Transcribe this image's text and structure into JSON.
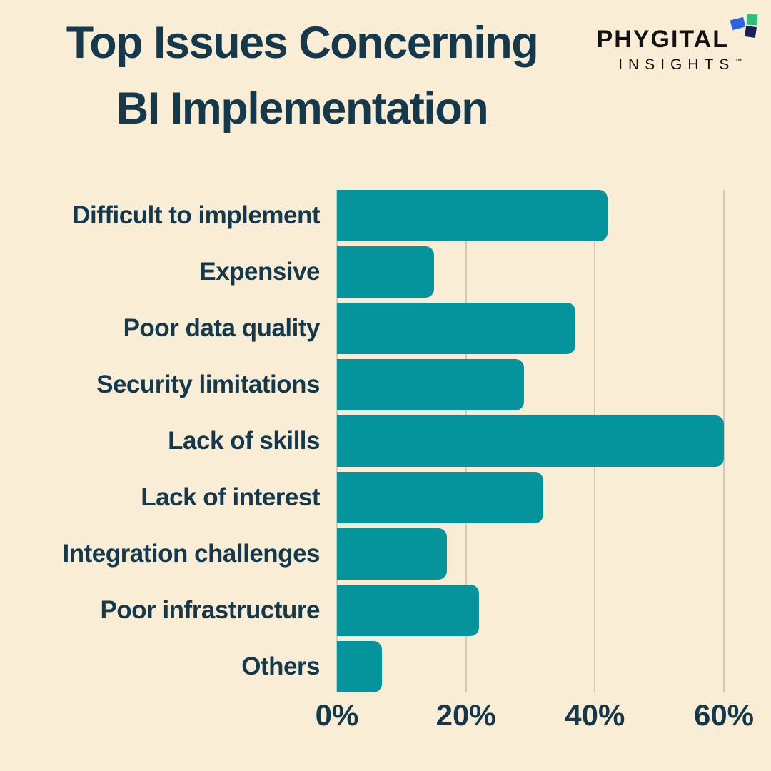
{
  "header": {
    "title_line1": "Top Issues Concerning",
    "title_line2": "BI Implementation"
  },
  "logo": {
    "name": "PHYGITAL",
    "tagline": "INSIGHTS",
    "trademark": "™",
    "icon_squares": [
      "blue-square",
      "green-square",
      "navy-square"
    ]
  },
  "colors": {
    "background": "#FAEDD5",
    "ink": "#14394C",
    "bar": "#05949B",
    "gridline": "#D4C9B6",
    "logo_text": "#121212",
    "logo_icon_blue": "#2D63E2",
    "logo_icon_green": "#2FBE81",
    "logo_icon_navy": "#16215C"
  },
  "chart_data": {
    "type": "bar",
    "orientation": "horizontal",
    "title": "Top Issues Concerning BI Implementation",
    "categories": [
      "Difficult to implement",
      "Expensive",
      "Poor data quality",
      "Security limitations",
      "Lack of skills",
      "Lack of interest",
      "Integration challenges",
      "Poor infrastructure",
      "Others"
    ],
    "values": [
      42,
      15,
      37,
      29,
      60,
      32,
      17,
      22,
      7
    ],
    "unit": "%",
    "xlabel": "",
    "ylabel": "",
    "xlim": [
      0,
      60
    ],
    "xticks": [
      0,
      20,
      40,
      60
    ],
    "xtick_labels": [
      "0%",
      "20%",
      "40%",
      "60%"
    ],
    "grid": true,
    "legend": false
  }
}
